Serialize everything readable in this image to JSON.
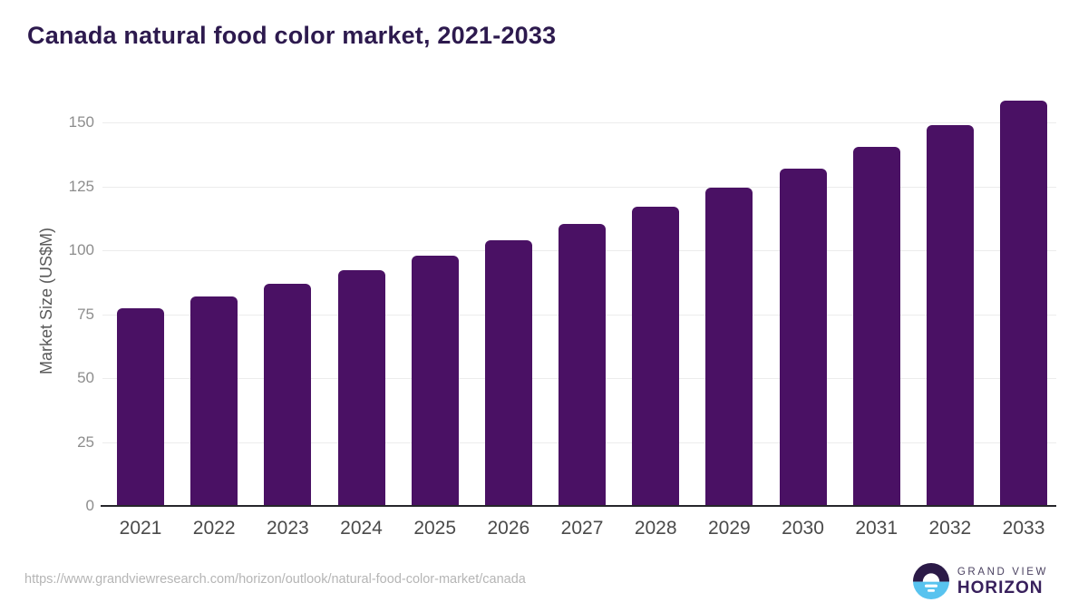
{
  "chart_data": {
    "type": "bar",
    "title": "Canada natural food color market, 2021-2033",
    "categories": [
      "2021",
      "2022",
      "2023",
      "2024",
      "2025",
      "2026",
      "2027",
      "2028",
      "2029",
      "2030",
      "2031",
      "2032",
      "2033"
    ],
    "values": [
      77,
      81.5,
      86.5,
      92,
      97.5,
      103.5,
      110,
      116.5,
      124,
      131.5,
      140,
      148.5,
      158
    ],
    "xlabel": "",
    "ylabel": "Market Size (US$M)",
    "yticks": [
      0,
      25,
      50,
      75,
      100,
      125,
      150
    ],
    "ylim": [
      0,
      160
    ],
    "grid": "horizontal-gridlines",
    "legend": "none",
    "bar_color": "#4a1164"
  },
  "footer": {
    "source_url": "https://www.grandviewresearch.com/horizon/outlook/natural-food-color-market/canada",
    "logo_line1": "GRAND VIEW",
    "logo_line2": "HORIZON",
    "logo_icon": "sunrise-horizon-icon"
  },
  "colors": {
    "title": "#2d1a4e",
    "bar": "#4a1164",
    "gridline": "#ececec",
    "axis_line": "#26262b",
    "y_tick": "#8d8d8d",
    "x_tick": "#4a4a4a",
    "url_text": "#b5b5b5",
    "logo_dark": "#2b1a47",
    "logo_blue": "#58c3ef"
  }
}
